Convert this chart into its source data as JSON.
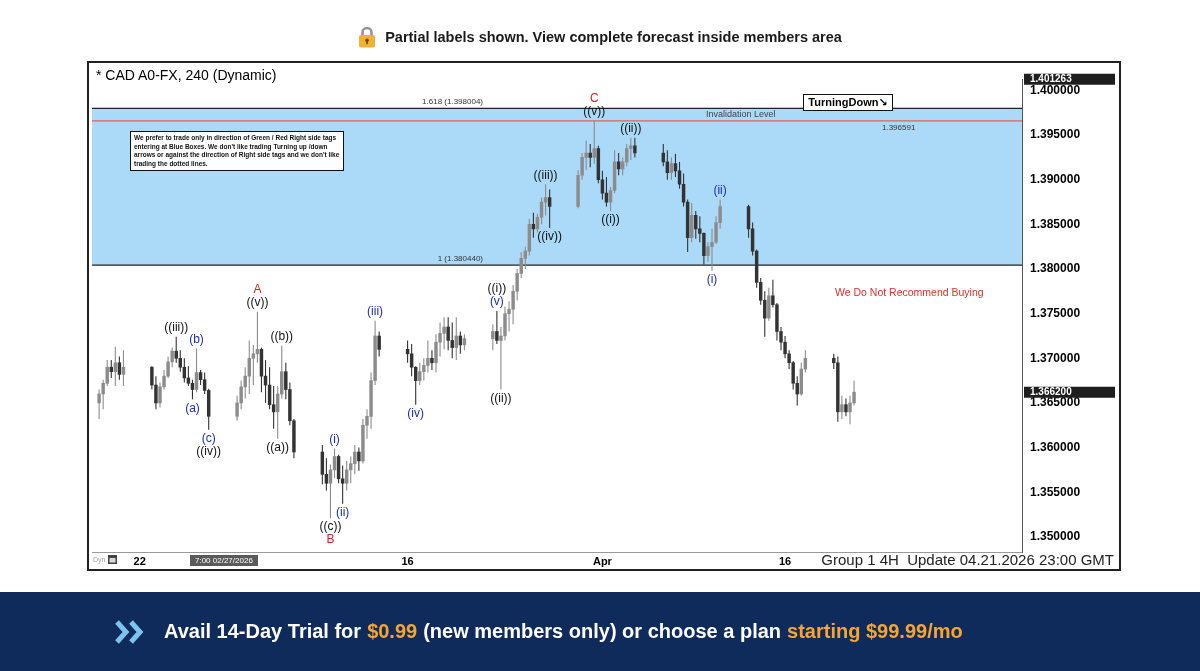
{
  "chart_data": {
    "type": "candlestick",
    "title": "* CAD A0-FX, 240 (Dynamic)",
    "x": [
      "2026-02-18T16:00",
      "2026-02-19T00:00",
      "2026-02-19T08:00",
      "2026-02-19T16:00",
      "2026-02-20T00:00",
      "2026-02-20T08:00",
      "2026-02-20T16:00",
      "2026-02-23T00:00",
      "2026-02-23T08:00",
      "2026-02-23T16:00",
      "2026-02-24T00:00",
      "2026-02-24T08:00",
      "2026-02-24T16:00",
      "2026-02-25T00:00",
      "2026-02-25T08:00",
      "2026-02-25T16:00",
      "2026-02-26T00:00",
      "2026-02-26T08:00",
      "2026-02-26T16:00",
      "2026-02-27T00:00",
      "2026-02-27T08:00",
      "2026-02-27T16:00",
      "2026-03-02T00:00",
      "2026-03-02T08:00",
      "2026-03-02T16:00",
      "2026-03-03T00:00",
      "2026-03-03T08:00",
      "2026-03-03T16:00",
      "2026-03-04T00:00",
      "2026-03-04T08:00",
      "2026-03-04T16:00",
      "2026-03-05T00:00",
      "2026-03-05T08:00",
      "2026-03-05T16:00",
      "2026-03-06T00:00",
      "2026-03-06T08:00",
      "2026-03-06T16:00",
      "2026-03-09T00:00",
      "2026-03-09T08:00",
      "2026-03-09T16:00",
      "2026-03-10T00:00",
      "2026-03-10T08:00",
      "2026-03-10T16:00",
      "2026-03-11T00:00",
      "2026-03-11T08:00",
      "2026-03-11T16:00",
      "2026-03-12T00:00",
      "2026-03-12T08:00",
      "2026-03-12T16:00",
      "2026-03-13T00:00",
      "2026-03-13T08:00",
      "2026-03-13T16:00",
      "2026-03-16T00:00",
      "2026-03-16T08:00",
      "2026-03-16T16:00",
      "2026-03-17T00:00",
      "2026-03-17T08:00",
      "2026-03-17T16:00",
      "2026-03-18T00:00",
      "2026-03-18T08:00",
      "2026-03-18T16:00",
      "2026-03-19T00:00",
      "2026-03-19T08:00",
      "2026-03-19T16:00",
      "2026-03-20T00:00",
      "2026-03-20T08:00",
      "2026-03-20T16:00",
      "2026-03-23T00:00",
      "2026-03-23T08:00",
      "2026-03-23T16:00",
      "2026-03-24T00:00",
      "2026-03-24T08:00",
      "2026-03-24T16:00",
      "2026-03-25T00:00",
      "2026-03-25T08:00",
      "2026-03-25T16:00",
      "2026-03-26T00:00",
      "2026-03-26T08:00",
      "2026-03-26T16:00",
      "2026-03-27T00:00",
      "2026-03-27T08:00",
      "2026-03-27T16:00",
      "2026-03-30T00:00",
      "2026-03-30T08:00",
      "2026-03-30T16:00",
      "2026-03-31T00:00",
      "2026-03-31T08:00",
      "2026-03-31T16:00",
      "2026-04-01T00:00",
      "2026-04-01T08:00",
      "2026-04-01T16:00",
      "2026-04-02T00:00",
      "2026-04-02T08:00",
      "2026-04-02T16:00",
      "2026-04-03T00:00",
      "2026-04-03T08:00",
      "2026-04-03T16:00",
      "2026-04-06T00:00",
      "2026-04-06T08:00",
      "2026-04-06T16:00",
      "2026-04-07T00:00",
      "2026-04-07T08:00",
      "2026-04-07T16:00",
      "2026-04-08T00:00",
      "2026-04-08T08:00",
      "2026-04-08T16:00",
      "2026-04-09T00:00",
      "2026-04-09T08:00",
      "2026-04-09T16:00",
      "2026-04-10T00:00",
      "2026-04-10T08:00",
      "2026-04-10T16:00",
      "2026-04-13T00:00",
      "2026-04-13T08:00",
      "2026-04-13T16:00",
      "2026-04-14T00:00",
      "2026-04-14T08:00",
      "2026-04-14T16:00",
      "2026-04-15T00:00",
      "2026-04-15T08:00",
      "2026-04-15T16:00",
      "2026-04-16T00:00",
      "2026-04-16T08:00",
      "2026-04-16T16:00",
      "2026-04-17T00:00",
      "2026-04-17T08:00",
      "2026-04-17T16:00",
      "2026-04-20T00:00",
      "2026-04-20T08:00",
      "2026-04-20T16:00",
      "2026-04-21T00:00",
      "2026-04-21T08:00",
      "2026-04-21T16:00"
    ],
    "ohlc": [
      [
        1.365,
        1.3665,
        1.3632,
        1.366
      ],
      [
        1.366,
        1.3676,
        1.3643,
        1.3672
      ],
      [
        1.3672,
        1.3698,
        1.3669,
        1.369
      ],
      [
        1.369,
        1.3698,
        1.3678,
        1.3685
      ],
      [
        1.3685,
        1.3713,
        1.3669,
        1.3695
      ],
      [
        1.3695,
        1.3702,
        1.3676,
        1.3682
      ],
      [
        1.3682,
        1.3709,
        1.3669,
        1.369
      ],
      [
        1.369,
        1.3691,
        1.3665,
        1.367
      ],
      [
        1.367,
        1.368,
        1.3643,
        1.365
      ],
      [
        1.365,
        1.3673,
        1.3645,
        1.3668
      ],
      [
        1.3668,
        1.3687,
        1.3665,
        1.368
      ],
      [
        1.368,
        1.3702,
        1.3678,
        1.3696
      ],
      [
        1.3696,
        1.3712,
        1.369,
        1.3708
      ],
      [
        1.3708,
        1.3724,
        1.3695,
        1.37
      ],
      [
        1.37,
        1.3709,
        1.3685,
        1.369
      ],
      [
        1.369,
        1.37,
        1.3673,
        1.3678
      ],
      [
        1.3678,
        1.3691,
        1.3669,
        1.3672
      ],
      [
        1.3672,
        1.3676,
        1.3654,
        1.3665
      ],
      [
        1.3665,
        1.3711,
        1.3662,
        1.3684
      ],
      [
        1.3684,
        1.3687,
        1.367,
        1.3676
      ],
      [
        1.3676,
        1.3684,
        1.366,
        1.3664
      ],
      [
        1.3664,
        1.3666,
        1.362,
        1.3635
      ],
      [
        1.3635,
        1.3658,
        1.363,
        1.365
      ],
      [
        1.365,
        1.3675,
        1.3643,
        1.3668
      ],
      [
        1.3668,
        1.369,
        1.3655,
        1.368
      ],
      [
        1.368,
        1.372,
        1.366,
        1.37
      ],
      [
        1.37,
        1.3715,
        1.367,
        1.3705
      ],
      [
        1.3705,
        1.3752,
        1.3695,
        1.371
      ],
      [
        1.371,
        1.3712,
        1.3662,
        1.368
      ],
      [
        1.368,
        1.3698,
        1.365,
        1.367
      ],
      [
        1.367,
        1.369,
        1.3643,
        1.3648
      ],
      [
        1.3648,
        1.3669,
        1.3621,
        1.364
      ],
      [
        1.364,
        1.3669,
        1.361,
        1.366
      ],
      [
        1.366,
        1.3714,
        1.3655,
        1.3685
      ],
      [
        1.3685,
        1.3695,
        1.3654,
        1.3665
      ],
      [
        1.3665,
        1.3673,
        1.3625,
        1.363
      ],
      [
        1.363,
        1.3632,
        1.3588,
        1.3595
      ],
      [
        1.3595,
        1.3603,
        1.3559,
        1.357
      ],
      [
        1.357,
        1.3588,
        1.3552,
        1.356
      ],
      [
        1.356,
        1.3581,
        1.3521,
        1.3575
      ],
      [
        1.3575,
        1.3599,
        1.3566,
        1.359
      ],
      [
        1.359,
        1.3592,
        1.356,
        1.3565
      ],
      [
        1.3565,
        1.358,
        1.3537,
        1.356
      ],
      [
        1.356,
        1.3585,
        1.3552,
        1.3575
      ],
      [
        1.3575,
        1.359,
        1.356,
        1.3582
      ],
      [
        1.3582,
        1.3603,
        1.357,
        1.3595
      ],
      [
        1.3595,
        1.36,
        1.3574,
        1.3585
      ],
      [
        1.3585,
        1.3632,
        1.3582,
        1.3625
      ],
      [
        1.3625,
        1.3643,
        1.361,
        1.3635
      ],
      [
        1.3635,
        1.3684,
        1.3621,
        1.3675
      ],
      [
        1.3675,
        1.3742,
        1.367,
        1.3725
      ],
      [
        1.3725,
        1.373,
        1.3702,
        1.371
      ],
      [
        1.371,
        1.372,
        1.3695,
        1.3705
      ],
      [
        1.3705,
        1.3716,
        1.368,
        1.369
      ],
      [
        1.369,
        1.3691,
        1.3648,
        1.3675
      ],
      [
        1.3675,
        1.3695,
        1.367,
        1.3685
      ],
      [
        1.3685,
        1.37,
        1.3675,
        1.3692
      ],
      [
        1.3692,
        1.372,
        1.3684,
        1.37
      ],
      [
        1.37,
        1.3709,
        1.3687,
        1.3695
      ],
      [
        1.3695,
        1.3727,
        1.3684,
        1.3718
      ],
      [
        1.3718,
        1.374,
        1.3702,
        1.3728
      ],
      [
        1.3728,
        1.3746,
        1.371,
        1.3735
      ],
      [
        1.3735,
        1.3746,
        1.3709,
        1.372
      ],
      [
        1.372,
        1.374,
        1.37,
        1.3712
      ],
      [
        1.3712,
        1.3746,
        1.3698,
        1.3725
      ],
      [
        1.3725,
        1.373,
        1.3705,
        1.3715
      ],
      [
        1.3715,
        1.3727,
        1.3709,
        1.3722
      ],
      [
        1.3722,
        1.3738,
        1.3709,
        1.373
      ],
      [
        1.373,
        1.3753,
        1.3716,
        1.372
      ],
      [
        1.372,
        1.3735,
        1.3665,
        1.3725
      ],
      [
        1.3725,
        1.3758,
        1.372,
        1.375
      ],
      [
        1.375,
        1.3764,
        1.373,
        1.3755
      ],
      [
        1.3755,
        1.3782,
        1.3738,
        1.3775
      ],
      [
        1.3775,
        1.38,
        1.3765,
        1.3795
      ],
      [
        1.3795,
        1.3819,
        1.379,
        1.3812
      ],
      [
        1.3812,
        1.3825,
        1.38,
        1.382
      ],
      [
        1.382,
        1.3856,
        1.3815,
        1.385
      ],
      [
        1.385,
        1.3863,
        1.3835,
        1.3845
      ],
      [
        1.3845,
        1.3862,
        1.3841,
        1.3858
      ],
      [
        1.3858,
        1.388,
        1.385,
        1.3875
      ],
      [
        1.3875,
        1.3895,
        1.386,
        1.388
      ],
      [
        1.388,
        1.3889,
        1.3846,
        1.387
      ],
      [
        1.387,
        1.3911,
        1.3868,
        1.3905
      ],
      [
        1.3905,
        1.393,
        1.39,
        1.3925
      ],
      [
        1.3925,
        1.3944,
        1.3911,
        1.393
      ],
      [
        1.393,
        1.394,
        1.3914,
        1.3925
      ],
      [
        1.3925,
        1.3966,
        1.3918,
        1.3935
      ],
      [
        1.3935,
        1.3938,
        1.3896,
        1.39
      ],
      [
        1.39,
        1.391,
        1.3878,
        1.3885
      ],
      [
        1.3885,
        1.3903,
        1.387,
        1.3875
      ],
      [
        1.3875,
        1.3892,
        1.3865,
        1.3888
      ],
      [
        1.3888,
        1.3933,
        1.3885,
        1.392
      ],
      [
        1.392,
        1.393,
        1.3905,
        1.3912
      ],
      [
        1.3912,
        1.3925,
        1.3905,
        1.392
      ],
      [
        1.392,
        1.394,
        1.3915,
        1.3935
      ],
      [
        1.3935,
        1.3947,
        1.3922,
        1.3938
      ],
      [
        1.3938,
        1.3947,
        1.3925,
        1.393
      ],
      [
        1.393,
        1.394,
        1.3915,
        1.392
      ],
      [
        1.392,
        1.3933,
        1.39,
        1.3908
      ],
      [
        1.3908,
        1.3925,
        1.39,
        1.3918
      ],
      [
        1.3918,
        1.3929,
        1.3903,
        1.391
      ],
      [
        1.391,
        1.392,
        1.389,
        1.3895
      ],
      [
        1.3895,
        1.3907,
        1.387,
        1.3875
      ],
      [
        1.3875,
        1.3878,
        1.3819,
        1.3835
      ],
      [
        1.3835,
        1.3874,
        1.383,
        1.386
      ],
      [
        1.386,
        1.3865,
        1.3834,
        1.3845
      ],
      [
        1.3845,
        1.3859,
        1.383,
        1.384
      ],
      [
        1.384,
        1.3841,
        1.3805,
        1.3815
      ],
      [
        1.3815,
        1.383,
        1.3808,
        1.3825
      ],
      [
        1.3825,
        1.3845,
        1.3798,
        1.383
      ],
      [
        1.383,
        1.3859,
        1.3828,
        1.3852
      ],
      [
        1.3852,
        1.3878,
        1.3845,
        1.387
      ],
      [
        1.387,
        1.3872,
        1.3835,
        1.3845
      ],
      [
        1.3845,
        1.3852,
        1.3815,
        1.382
      ],
      [
        1.382,
        1.3822,
        1.3779,
        1.3785
      ],
      [
        1.3785,
        1.379,
        1.376,
        1.3765
      ],
      [
        1.3765,
        1.3775,
        1.3724,
        1.3745
      ],
      [
        1.3745,
        1.3779,
        1.3742,
        1.377
      ],
      [
        1.377,
        1.3788,
        1.3757,
        1.376
      ],
      [
        1.376,
        1.3762,
        1.372,
        1.373
      ],
      [
        1.373,
        1.3735,
        1.3709,
        1.3718
      ],
      [
        1.3718,
        1.3725,
        1.37,
        1.3705
      ],
      [
        1.3705,
        1.3709,
        1.3688,
        1.3695
      ],
      [
        1.3695,
        1.3697,
        1.3665,
        1.3672
      ],
      [
        1.3672,
        1.368,
        1.3647,
        1.366
      ],
      [
        1.366,
        1.3695,
        1.3658,
        1.3688
      ],
      [
        1.3688,
        1.3709,
        1.3684,
        1.37
      ],
      [
        1.37,
        1.3705,
        1.3688,
        1.3695
      ],
      [
        1.3695,
        1.3702,
        1.3629,
        1.364
      ],
      [
        1.364,
        1.3658,
        1.3632,
        1.3648
      ],
      [
        1.3648,
        1.3655,
        1.3635,
        1.364
      ],
      [
        1.364,
        1.3658,
        1.3626,
        1.365
      ],
      [
        1.365,
        1.3675,
        1.3647,
        1.3662
      ]
    ],
    "colors": [
      "#8c8c8c",
      "#8c8c8c",
      "#8c8c8c",
      "#333333",
      "#8c8c8c",
      "#333333",
      "#8c8c8c",
      "#333333",
      "#333333",
      "#8c8c8c",
      "#8c8c8c",
      "#8c8c8c",
      "#8c8c8c",
      "#333333",
      "#333333",
      "#333333",
      "#333333",
      "#333333",
      "#8c8c8c",
      "#333333",
      "#333333",
      "#333333",
      "#8c8c8c",
      "#8c8c8c",
      "#8c8c8c",
      "#8c8c8c",
      "#8c8c8c",
      "#8c8c8c",
      "#333333",
      "#333333",
      "#333333",
      "#333333",
      "#8c8c8c",
      "#8c8c8c",
      "#333333",
      "#333333",
      "#333333",
      "#333333",
      "#333333",
      "#8c8c8c",
      "#8c8c8c",
      "#333333",
      "#333333",
      "#8c8c8c",
      "#8c8c8c",
      "#8c8c8c",
      "#333333",
      "#8c8c8c",
      "#8c8c8c",
      "#8c8c8c",
      "#8c8c8c",
      "#333333",
      "#333333",
      "#333333",
      "#333333",
      "#8c8c8c",
      "#8c8c8c",
      "#8c8c8c",
      "#333333",
      "#8c8c8c",
      "#8c8c8c",
      "#8c8c8c",
      "#333333",
      "#333333",
      "#8c8c8c",
      "#333333",
      "#8c8c8c",
      "#8c8c8c",
      "#333333",
      "#8c8c8c",
      "#8c8c8c",
      "#8c8c8c",
      "#8c8c8c",
      "#8c8c8c",
      "#8c8c8c",
      "#8c8c8c",
      "#8c8c8c",
      "#333333",
      "#8c8c8c",
      "#8c8c8c",
      "#8c8c8c",
      "#333333",
      "#8c8c8c",
      "#8c8c8c",
      "#8c8c8c",
      "#333333",
      "#8c8c8c",
      "#333333",
      "#333333",
      "#333333",
      "#8c8c8c",
      "#8c8c8c",
      "#333333",
      "#8c8c8c",
      "#8c8c8c",
      "#8c8c8c",
      "#333333",
      "#333333",
      "#333333",
      "#8c8c8c",
      "#333333",
      "#333333",
      "#333333",
      "#333333",
      "#8c8c8c",
      "#333333",
      "#333333",
      "#333333",
      "#8c8c8c",
      "#8c8c8c",
      "#8c8c8c",
      "#8c8c8c",
      "#333333",
      "#333333",
      "#333333",
      "#333333",
      "#333333",
      "#8c8c8c",
      "#333333",
      "#333333",
      "#333333",
      "#333333",
      "#333333",
      "#333333",
      "#333333",
      "#8c8c8c",
      "#8c8c8c",
      "#333333",
      "#333333",
      "#8c8c8c",
      "#333333",
      "#8c8c8c",
      "#8c8c8c"
    ],
    "xlim": [
      "2026-02-18T02:00",
      "2026-05-05T11:00"
    ],
    "xticks": [
      {
        "value": "2026-02-22",
        "label": "22"
      },
      {
        "value": "2026-03-16",
        "label": "16"
      },
      {
        "value": "2026-04-01",
        "label": "Apr"
      },
      {
        "value": "2026-04-16",
        "label": "16"
      }
    ],
    "ylim": [
      1.3483,
      1.401263
    ],
    "yticks": [
      {
        "value": 1.35,
        "label": "1.350000"
      },
      {
        "value": 1.355,
        "label": "1.355000"
      },
      {
        "value": 1.36,
        "label": "1.360000"
      },
      {
        "value": 1.365,
        "label": "1.365000"
      },
      {
        "value": 1.37,
        "label": "1.370000"
      },
      {
        "value": 1.375,
        "label": "1.375000"
      },
      {
        "value": 1.38,
        "label": "1.380000"
      },
      {
        "value": 1.385,
        "label": "1.385000"
      },
      {
        "value": 1.39,
        "label": "1.390000"
      },
      {
        "value": 1.395,
        "label": "1.395000"
      },
      {
        "value": 1.4,
        "label": "1.400000"
      }
    ],
    "bands": [
      {
        "axis": "y",
        "from": 1.38044,
        "to": 1.398004,
        "color": "#abd9f8"
      }
    ],
    "ref_lines": [
      {
        "axis": "y",
        "value": 1.398004,
        "label": "1.618 (1.398004)",
        "color": "#222222"
      },
      {
        "axis": "y",
        "value": 1.38044,
        "label": "1 (1.380440)",
        "color": "#222222"
      },
      {
        "axis": "y",
        "value": 1.396591,
        "label": "Invalidation Level",
        "color": "#e0605a"
      }
    ],
    "annotations": [
      "Partial labels shown. View complete forecast inside members area",
      "We prefer to trade only in direction of Green / Red Right side tags entering at Blue Boxes. We don't like trading Turning up /down arrows or against the direction of Right side tags and we don't like trading the dotted lines.",
      "TurningDown↘",
      "We Do Not Recommend Buying",
      "7:00 02/27/2026",
      "Group 1 4H  Update 04.21.2026 23:00 GMT",
      "Dyn",
      "Avail 14-Day Trial for",
      "$0.99",
      "(new members only) or choose a plan",
      "starting $99.99/mo",
      "1.401263",
      "1.366200",
      {
        "text": "1.396591",
        "y": 1.396591
      },
      {
        "text": "A",
        "x": "2026-03-03T16:00",
        "y": 1.3752
      },
      {
        "text": "B",
        "x": "2026-03-09T16:00",
        "y": 1.3521
      },
      {
        "text": "C",
        "x": "2026-03-31T08:00",
        "y": 1.3966
      },
      {
        "text": "((iii))",
        "x": "2026-02-25T00:00",
        "y": 1.3724
      },
      {
        "text": "((iv))",
        "x": "2026-02-27T16:00",
        "y": 1.362
      },
      {
        "text": "((v))",
        "x": "2026-03-03T16:00",
        "y": 1.3752
      },
      {
        "text": "((a))",
        "x": "2026-03-05T08:00",
        "y": 1.361
      },
      {
        "text": "((b))",
        "x": "2026-03-05T16:00",
        "y": 1.3714
      },
      {
        "text": "((c))",
        "x": "2026-03-09T16:00",
        "y": 1.3521
      },
      {
        "text": "((i))",
        "x": "2026-03-23T08:00",
        "y": 1.3753
      },
      {
        "text": "((ii))",
        "x": "2026-03-23T16:00",
        "y": 1.3665
      },
      {
        "text": "((iii))",
        "x": "2026-03-27T08:00",
        "y": 1.3895
      },
      {
        "text": "((iv))",
        "x": "2026-03-27T16:00",
        "y": 1.3846
      },
      {
        "text": "((v))",
        "x": "2026-03-31T08:00",
        "y": 1.3966
      },
      {
        "text": "((i))",
        "x": "2026-04-01T16:00",
        "y": 1.3865
      },
      {
        "text": "((ii))",
        "x": "2026-04-03T08:00",
        "y": 1.3947
      },
      {
        "text": "(a)",
        "x": "2026-02-26T08:00",
        "y": 1.3654
      },
      {
        "text": "(b)",
        "x": "2026-02-26T16:00",
        "y": 1.3711
      },
      {
        "text": "(c)",
        "x": "2026-02-27T16:00",
        "y": 1.362
      },
      {
        "text": "(i)",
        "x": "2026-03-10T00:00",
        "y": 1.3599
      },
      {
        "text": "(ii)",
        "x": "2026-03-10T16:00",
        "y": 1.3537
      },
      {
        "text": "(iii)",
        "x": "2026-03-13T08:00",
        "y": 1.3742
      },
      {
        "text": "(iv)",
        "x": "2026-03-16T16:00",
        "y": 1.3648
      },
      {
        "text": "(v)",
        "x": "2026-03-23T08:00",
        "y": 1.3753
      },
      {
        "text": "(i)",
        "x": "2026-04-10T00:00",
        "y": 1.3798
      },
      {
        "text": "(ii)",
        "x": "2026-04-10T16:00",
        "y": 1.3878
      }
    ]
  }
}
